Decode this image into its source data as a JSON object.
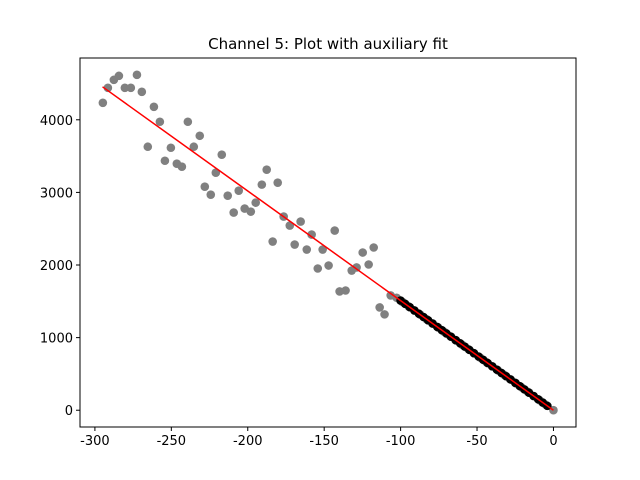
{
  "chart_data": {
    "type": "scatter",
    "title": "Channel 5: Plot with auxiliary fit",
    "xlim": [
      -309.75,
      14.75
    ],
    "ylim": [
      -231,
      4851
    ],
    "xticks": [
      -300,
      -250,
      -200,
      -150,
      -100,
      -50,
      0
    ],
    "yticks": [
      0,
      1000,
      2000,
      3000,
      4000
    ],
    "series": [
      {
        "kind": "markers",
        "color": "#808080",
        "x": [
          -294.8,
          -291.5,
          -287.6,
          -284.3,
          -280.4,
          -276.5,
          -272.5,
          -269.3,
          -265.4,
          -261.4,
          -257.5,
          -254.2,
          -250.3,
          -246.4,
          -243.1,
          -239.2,
          -235.3,
          -231.4,
          -228.1,
          -224.2,
          -220.9,
          -217.0,
          -213.1,
          -209.2,
          -205.9,
          -202.0,
          -198.0,
          -194.8,
          -190.8,
          -187.6,
          -183.7,
          -180.4,
          -176.5,
          -172.5,
          -169.3,
          -165.4,
          -161.4,
          -158.2,
          -154.2,
          -151.0,
          -147.1,
          -143.1,
          -139.9,
          -136.0,
          -132.0,
          -128.8,
          -124.8,
          -120.9,
          -117.6,
          -113.7,
          -110.5,
          -106.5,
          -102.6,
          -98.7,
          -94.8,
          -90.9,
          -87.0,
          -83.1,
          -79.2,
          -75.3,
          -71.4,
          -67.5,
          -63.6,
          -59.7,
          -55.8,
          -51.9,
          -48.0,
          -44.1,
          -40.2,
          -36.3,
          -32.4,
          -28.5,
          -24.6,
          -20.7,
          -16.8,
          -12.9,
          -9.0,
          -5.1,
          0
        ],
        "values": [
          4234,
          4440,
          4550,
          4605,
          4440,
          4440,
          4619,
          4385,
          3629,
          4179,
          3973,
          3436,
          3615,
          3395,
          3354,
          3973,
          3629,
          3780,
          3079,
          2969,
          3271,
          3519,
          2955,
          2722,
          3024,
          2777,
          2735,
          2859,
          3107,
          3313,
          2323,
          3134,
          2667,
          2543,
          2282,
          2598,
          2213,
          2419,
          1952,
          2213,
          1993,
          2474,
          1636,
          1649,
          1924,
          1966,
          2172,
          2007,
          2241,
          1416,
          1320,
          1581,
          1549,
          1490,
          1431,
          1373,
          1314,
          1255,
          1196,
          1137,
          1078,
          1019,
          960,
          901,
          843,
          784,
          725,
          666,
          607,
          548,
          489,
          430,
          371,
          313,
          254,
          195,
          136,
          77,
          0
        ]
      },
      {
        "kind": "markers",
        "color": "#000000",
        "x": [
          -100,
          -97,
          -94,
          -91,
          -88,
          -85,
          -82,
          -79,
          -76,
          -73,
          -70,
          -67,
          -64,
          -61,
          -58,
          -55,
          -52,
          -49,
          -46,
          -43,
          -40,
          -37,
          -34,
          -31,
          -28,
          -25,
          -22,
          -19,
          -16,
          -13,
          -10,
          -7,
          -4
        ],
        "values": [
          1510,
          1465,
          1419,
          1374,
          1329,
          1284,
          1238,
          1193,
          1148,
          1102,
          1057,
          1012,
          966,
          921,
          876,
          831,
          785,
          740,
          695,
          649,
          604,
          559,
          513,
          468,
          423,
          378,
          332,
          287,
          242,
          196,
          151,
          106,
          60
        ]
      },
      {
        "kind": "line",
        "color": "#ff0000",
        "x": [
          -295,
          0
        ],
        "values": [
          4454,
          0
        ]
      }
    ]
  }
}
